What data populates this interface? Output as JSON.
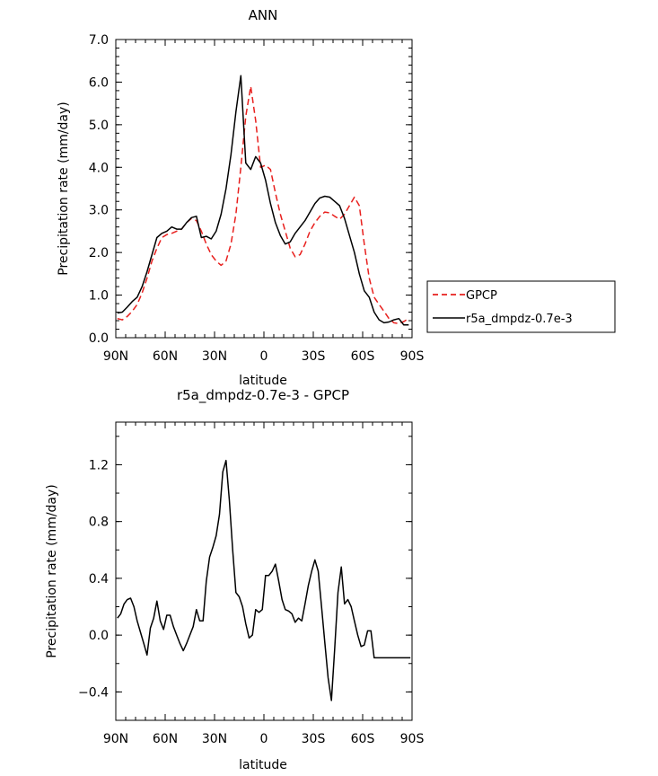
{
  "chart_data": [
    {
      "type": "line",
      "title": "ANN",
      "xlabel": "latitude",
      "ylabel": "Precipitation rate (mm/day)",
      "xlim": [
        -90,
        90
      ],
      "ylim": [
        0,
        7
      ],
      "x_ticks": [
        {
          "value": -90,
          "label": "90N"
        },
        {
          "value": -60,
          "label": "60N"
        },
        {
          "value": -30,
          "label": "30N"
        },
        {
          "value": 0,
          "label": "0"
        },
        {
          "value": 30,
          "label": "30S"
        },
        {
          "value": 60,
          "label": "60S"
        },
        {
          "value": 90,
          "label": "90S"
        }
      ],
      "y_ticks": [
        {
          "value": 0,
          "label": "0.0"
        },
        {
          "value": 1,
          "label": "1.0"
        },
        {
          "value": 2,
          "label": "2.0"
        },
        {
          "value": 3,
          "label": "3.0"
        },
        {
          "value": 4,
          "label": "4.0"
        },
        {
          "value": 5,
          "label": "5.0"
        },
        {
          "value": 6,
          "label": "6.0"
        },
        {
          "value": 7,
          "label": "7.0"
        }
      ],
      "legend_position": "right",
      "series": [
        {
          "name": "GPCP",
          "color": "#e8201e",
          "dash": "dashed",
          "x": [
            -89,
            -86,
            -83,
            -80,
            -77,
            -74,
            -71,
            -68,
            -65,
            -62,
            -59,
            -56,
            -53,
            -50,
            -47,
            -44,
            -41,
            -38,
            -35,
            -32,
            -29,
            -26,
            -23,
            -20,
            -17,
            -14,
            -11,
            -8,
            -5,
            -2,
            1,
            4,
            7,
            10,
            13,
            16,
            19,
            22,
            25,
            28,
            31,
            34,
            37,
            40,
            43,
            46,
            49,
            52,
            55,
            58,
            61,
            64,
            67,
            70,
            73,
            76,
            79,
            82,
            85,
            88
          ],
          "y": [
            0.45,
            0.42,
            0.5,
            0.62,
            0.78,
            1.05,
            1.4,
            1.8,
            2.1,
            2.35,
            2.42,
            2.45,
            2.5,
            2.55,
            2.7,
            2.8,
            2.75,
            2.5,
            2.2,
            1.95,
            1.8,
            1.7,
            1.8,
            2.2,
            2.9,
            4.0,
            5.2,
            5.9,
            5.1,
            4.0,
            4.05,
            3.95,
            3.4,
            2.9,
            2.5,
            2.1,
            1.9,
            1.95,
            2.2,
            2.5,
            2.7,
            2.85,
            2.95,
            2.93,
            2.85,
            2.78,
            2.9,
            3.1,
            3.3,
            3.1,
            2.2,
            1.4,
            0.95,
            0.78,
            0.62,
            0.45,
            0.35,
            0.33,
            0.38,
            0.45
          ]
        },
        {
          "name": "r5a_dmpdz-0.7e-3",
          "color": "#000000",
          "dash": "solid",
          "x": [
            -89,
            -86,
            -83,
            -80,
            -77,
            -74,
            -71,
            -68,
            -65,
            -62,
            -59,
            -56,
            -53,
            -50,
            -47,
            -44,
            -41,
            -38,
            -35,
            -32,
            -29,
            -26,
            -23,
            -20,
            -17,
            -14,
            -11,
            -8,
            -5,
            -2,
            1,
            4,
            7,
            10,
            13,
            16,
            19,
            22,
            25,
            28,
            31,
            34,
            37,
            40,
            43,
            46,
            49,
            52,
            55,
            58,
            61,
            64,
            67,
            70,
            73,
            76,
            79,
            82,
            85,
            88
          ],
          "y": [
            0.58,
            0.6,
            0.72,
            0.85,
            0.95,
            1.2,
            1.55,
            1.95,
            2.35,
            2.45,
            2.5,
            2.6,
            2.55,
            2.55,
            2.7,
            2.82,
            2.85,
            2.35,
            2.38,
            2.32,
            2.5,
            2.9,
            3.5,
            4.3,
            5.3,
            6.15,
            4.1,
            3.95,
            4.25,
            4.1,
            3.7,
            3.15,
            2.7,
            2.4,
            2.2,
            2.25,
            2.45,
            2.6,
            2.75,
            2.95,
            3.15,
            3.28,
            3.32,
            3.3,
            3.2,
            3.1,
            2.8,
            2.4,
            2.0,
            1.5,
            1.1,
            0.95,
            0.6,
            0.42,
            0.35,
            0.37,
            0.42,
            0.45,
            0.3,
            0.3
          ]
        }
      ]
    },
    {
      "type": "line",
      "title": "r5a_dmpdz-0.7e-3 - GPCP",
      "xlabel": "latitude",
      "ylabel": "Precipitation rate (mm/day)",
      "xlim": [
        -90,
        90
      ],
      "ylim": [
        -0.6,
        1.5
      ],
      "x_ticks": [
        {
          "value": -90,
          "label": "90N"
        },
        {
          "value": -60,
          "label": "60N"
        },
        {
          "value": -30,
          "label": "30N"
        },
        {
          "value": 0,
          "label": "0"
        },
        {
          "value": 30,
          "label": "30S"
        },
        {
          "value": 60,
          "label": "60S"
        },
        {
          "value": 90,
          "label": "90S"
        }
      ],
      "y_ticks": [
        {
          "value": -0.4,
          "label": "−0.4"
        },
        {
          "value": 0.0,
          "label": "0.0"
        },
        {
          "value": 0.4,
          "label": "0.4"
        },
        {
          "value": 0.8,
          "label": "0.8"
        },
        {
          "value": 1.2,
          "label": "1.2"
        }
      ],
      "series": [
        {
          "name": "",
          "color": "#000000",
          "dash": "solid",
          "x": [
            -89,
            -87,
            -85,
            -83,
            -81,
            -79,
            -77,
            -75,
            -73,
            -71,
            -69,
            -67,
            -65,
            -63,
            -61,
            -59,
            -57,
            -55,
            -53,
            -51,
            -49,
            -47,
            -45,
            -43,
            -41,
            -39,
            -37,
            -35,
            -33,
            -31,
            -29,
            -27,
            -25,
            -23,
            -21,
            -19,
            -17,
            -15,
            -13,
            -11,
            -9,
            -7,
            -5,
            -3,
            -1,
            1,
            3,
            5,
            7,
            9,
            11,
            13,
            15,
            17,
            19,
            21,
            23,
            25,
            27,
            29,
            31,
            33,
            35,
            37,
            39,
            41,
            43,
            45,
            47,
            49,
            51,
            53,
            55,
            57,
            59,
            61,
            63,
            65,
            67,
            69,
            71,
            73,
            75,
            77,
            79,
            81,
            83,
            85,
            87,
            89
          ],
          "y": [
            0.12,
            0.15,
            0.22,
            0.25,
            0.26,
            0.2,
            0.1,
            0.02,
            -0.06,
            -0.14,
            0.05,
            0.12,
            0.24,
            0.1,
            0.04,
            0.14,
            0.14,
            0.06,
            0.0,
            -0.06,
            -0.11,
            -0.06,
            0.0,
            0.06,
            0.18,
            0.1,
            0.1,
            0.38,
            0.55,
            0.62,
            0.7,
            0.85,
            1.15,
            1.23,
            0.95,
            0.6,
            0.3,
            0.27,
            0.2,
            0.08,
            -0.02,
            0.0,
            0.18,
            0.16,
            0.18,
            0.42,
            0.42,
            0.45,
            0.5,
            0.38,
            0.25,
            0.18,
            0.17,
            0.15,
            0.09,
            0.12,
            0.1,
            0.22,
            0.35,
            0.45,
            0.53,
            0.45,
            0.2,
            -0.05,
            -0.3,
            -0.46,
            -0.1,
            0.3,
            0.48,
            0.22,
            0.25,
            0.2,
            0.1,
            0.0,
            -0.08,
            -0.07,
            0.03,
            0.03,
            -0.16,
            -0.16,
            -0.16,
            -0.16,
            -0.16,
            -0.16,
            -0.16,
            -0.16,
            -0.16,
            -0.16,
            -0.16,
            -0.16
          ]
        }
      ]
    }
  ]
}
